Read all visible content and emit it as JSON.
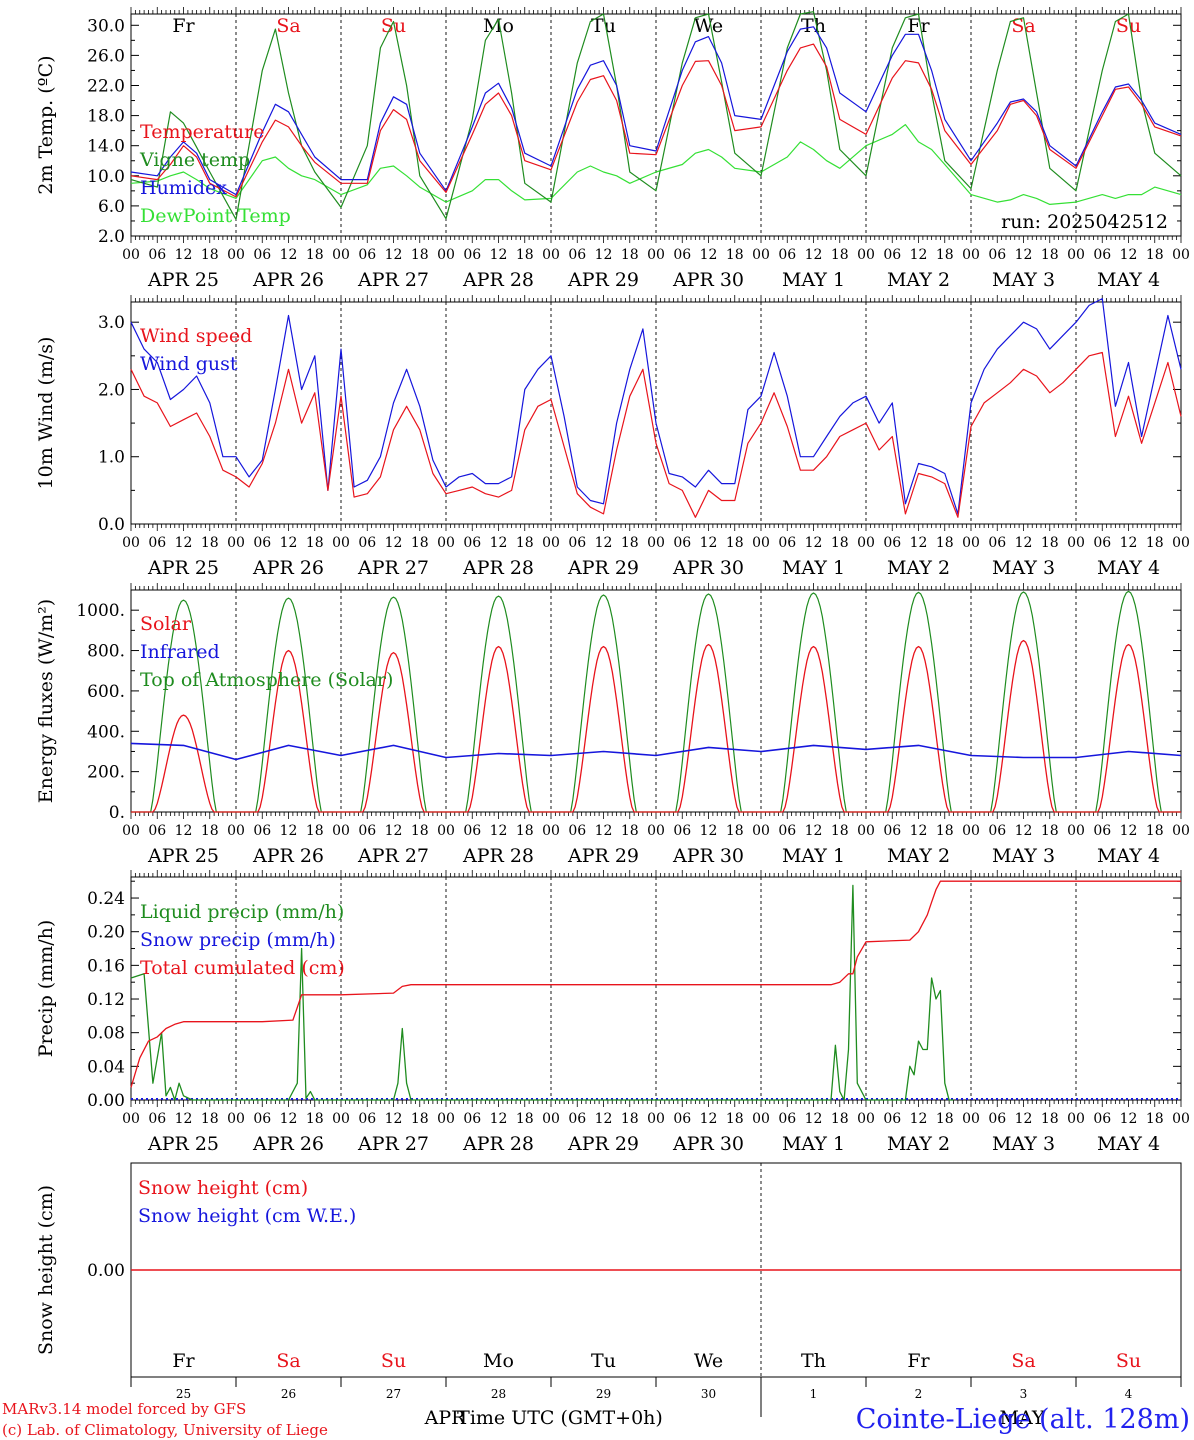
{
  "colors": {
    "red": "#e8141c",
    "blue": "#1616dc",
    "dark_green": "#1f8c1f",
    "light_green": "#35e035",
    "black": "#000000",
    "footer_red": "#e8141c",
    "footer_blue": "#2222ee"
  },
  "chart_data": [
    {
      "type": "line",
      "ylabel": "2m Temp. (ºC)",
      "ylim": [
        2.0,
        31.5
      ],
      "yticks": [
        "2.0",
        "6.0",
        "10.0",
        "14.0",
        "18.0",
        "22.0",
        "26.0",
        "30.0"
      ],
      "run_label": "run: 2025042512",
      "top_day_labels": [
        {
          "text": "Fr",
          "weekend": false
        },
        {
          "text": "Sa",
          "weekend": true
        },
        {
          "text": "Su",
          "weekend": true
        },
        {
          "text": "Mo",
          "weekend": false
        },
        {
          "text": "Tu",
          "weekend": false
        },
        {
          "text": "We",
          "weekend": false
        },
        {
          "text": "Th",
          "weekend": false
        },
        {
          "text": "Fr",
          "weekend": false
        },
        {
          "text": "Sa",
          "weekend": true
        },
        {
          "text": "Su",
          "weekend": true
        }
      ],
      "legend": [
        {
          "text": "Temperature",
          "color": "red"
        },
        {
          "text": "Vigne temp",
          "color": "dark_green"
        },
        {
          "text": "Humidex",
          "color": "blue"
        },
        {
          "text": "DewPoint Temp",
          "color": "light_green"
        }
      ],
      "x_hours": [
        0,
        6,
        9,
        12,
        15,
        18,
        24,
        30,
        33,
        36,
        39,
        42,
        48,
        54,
        57,
        60,
        63,
        66,
        72,
        78,
        81,
        84,
        87,
        90,
        96,
        102,
        105,
        108,
        111,
        114,
        120,
        126,
        129,
        132,
        135,
        138,
        144,
        150,
        153,
        156,
        159,
        162,
        168,
        174,
        177,
        180,
        183,
        186,
        192,
        198,
        201,
        204,
        207,
        210,
        216,
        222,
        225,
        228,
        231,
        234,
        240
      ],
      "series": [
        {
          "name": "Temperature",
          "color": "red",
          "values": [
            10.0,
            9.5,
            11.5,
            14.0,
            12.5,
            9.0,
            7.2,
            14.5,
            17.4,
            16.5,
            14.0,
            11.8,
            9.0,
            9.0,
            16.0,
            18.8,
            17.5,
            12.0,
            7.8,
            15.5,
            19.5,
            21.0,
            18.0,
            12.0,
            10.8,
            19.8,
            22.8,
            23.3,
            20.0,
            13.0,
            12.8,
            22.0,
            25.2,
            25.3,
            22.0,
            16.0,
            16.5,
            24.0,
            27.0,
            27.5,
            24.5,
            17.5,
            15.5,
            23.0,
            25.3,
            25.0,
            21.5,
            16.0,
            11.5,
            16.0,
            19.5,
            20.0,
            18.0,
            13.5,
            11.0,
            18.0,
            21.5,
            21.8,
            19.5,
            16.5,
            15.3
          ]
        },
        {
          "name": "Humidex",
          "color": "blue",
          "values": [
            10.5,
            10.0,
            12.5,
            14.5,
            13.0,
            9.5,
            7.5,
            15.8,
            19.5,
            18.5,
            15.5,
            12.5,
            9.5,
            9.5,
            17.0,
            20.5,
            19.5,
            13.0,
            8.0,
            16.5,
            21.0,
            22.3,
            19.0,
            13.0,
            11.3,
            21.5,
            24.7,
            25.3,
            22.0,
            14.0,
            13.3,
            24.0,
            27.8,
            28.5,
            25.0,
            18.0,
            17.5,
            26.5,
            29.5,
            29.8,
            27.0,
            21.0,
            18.5,
            26.0,
            28.8,
            28.8,
            24.0,
            17.5,
            12.0,
            17.0,
            19.8,
            20.2,
            18.5,
            14.0,
            11.3,
            18.5,
            21.8,
            22.2,
            20.0,
            17.0,
            15.5
          ]
        },
        {
          "name": "Vigne temp",
          "color": "dark_green",
          "values": [
            9.5,
            8.5,
            18.5,
            17.0,
            13.8,
            10.5,
            4.2,
            24.0,
            29.5,
            21.0,
            14.0,
            10.5,
            5.8,
            14.0,
            27.0,
            30.5,
            22.0,
            10.0,
            4.3,
            17.5,
            28.0,
            30.8,
            21.0,
            9.0,
            6.5,
            25.0,
            30.5,
            31.5,
            22.0,
            10.5,
            8.0,
            25.0,
            31.0,
            31.5,
            22.5,
            13.0,
            10.0,
            27.0,
            31.5,
            31.8,
            24.0,
            13.5,
            10.0,
            27.0,
            31.0,
            31.5,
            21.0,
            12.0,
            8.3,
            24.0,
            30.5,
            31.0,
            21.0,
            11.0,
            8.0,
            24.0,
            30.5,
            31.5,
            20.0,
            13.0,
            10.0
          ]
        },
        {
          "name": "DewPoint Temp",
          "color": "light_green",
          "values": [
            9.0,
            9.3,
            10.0,
            10.5,
            9.5,
            8.3,
            7.0,
            12.0,
            12.5,
            11.0,
            10.0,
            9.5,
            7.5,
            8.8,
            11.0,
            11.3,
            10.0,
            8.5,
            6.5,
            8.0,
            9.5,
            9.5,
            8.0,
            6.8,
            7.0,
            10.5,
            11.3,
            10.5,
            10.0,
            9.0,
            10.5,
            11.5,
            13.0,
            13.5,
            12.5,
            11.0,
            10.5,
            12.5,
            14.5,
            13.5,
            12.0,
            11.0,
            14.0,
            15.5,
            16.8,
            14.5,
            13.5,
            11.5,
            7.5,
            6.5,
            6.8,
            7.5,
            7.0,
            6.2,
            6.5,
            7.5,
            7.0,
            7.5,
            7.5,
            8.5,
            7.5
          ]
        }
      ]
    },
    {
      "type": "line",
      "ylabel": "10m Wind (m/s)",
      "ylim": [
        0.0,
        3.3
      ],
      "yticks": [
        "0.0",
        "1.0",
        "2.0",
        "3.0"
      ],
      "legend": [
        {
          "text": "Wind speed",
          "color": "red"
        },
        {
          "text": "Wind gust",
          "color": "blue"
        }
      ],
      "x_hours": [
        0,
        3,
        6,
        9,
        12,
        15,
        18,
        21,
        24,
        27,
        30,
        33,
        36,
        39,
        42,
        45,
        48,
        51,
        54,
        57,
        60,
        63,
        66,
        69,
        72,
        75,
        78,
        81,
        84,
        87,
        90,
        93,
        96,
        99,
        102,
        105,
        108,
        111,
        114,
        117,
        120,
        123,
        126,
        129,
        132,
        135,
        138,
        141,
        144,
        147,
        150,
        153,
        156,
        159,
        162,
        165,
        168,
        171,
        174,
        177,
        180,
        183,
        186,
        189,
        192,
        195,
        198,
        201,
        204,
        207,
        210,
        213,
        216,
        219,
        222,
        225,
        228,
        231,
        234,
        237,
        240
      ],
      "series": [
        {
          "name": "Wind speed",
          "color": "red",
          "values": [
            2.3,
            1.9,
            1.8,
            1.45,
            1.55,
            1.65,
            1.3,
            0.8,
            0.7,
            0.55,
            0.9,
            1.5,
            2.3,
            1.5,
            1.95,
            0.5,
            1.9,
            0.4,
            0.45,
            0.7,
            1.4,
            1.75,
            1.4,
            0.75,
            0.45,
            0.5,
            0.55,
            0.45,
            0.4,
            0.5,
            1.4,
            1.75,
            1.85,
            1.15,
            0.45,
            0.25,
            0.15,
            1.1,
            1.9,
            2.3,
            1.2,
            0.6,
            0.5,
            0.1,
            0.5,
            0.35,
            0.35,
            1.2,
            1.5,
            1.95,
            1.45,
            0.8,
            0.8,
            1.0,
            1.3,
            1.4,
            1.5,
            1.1,
            1.3,
            0.15,
            0.75,
            0.7,
            0.6,
            0.1,
            1.45,
            1.8,
            1.95,
            2.1,
            2.3,
            2.2,
            1.95,
            2.1,
            2.3,
            2.5,
            2.55,
            1.3,
            1.9,
            1.2,
            1.8,
            2.4,
            1.6
          ]
        },
        {
          "name": "Wind gust",
          "color": "blue",
          "values": [
            3.0,
            2.6,
            2.4,
            1.85,
            2.0,
            2.2,
            1.8,
            1.0,
            1.0,
            0.7,
            0.95,
            2.0,
            3.1,
            2.0,
            2.5,
            0.5,
            2.6,
            0.55,
            0.65,
            1.0,
            1.8,
            2.3,
            1.75,
            0.95,
            0.55,
            0.7,
            0.75,
            0.6,
            0.6,
            0.7,
            2.0,
            2.3,
            2.5,
            1.6,
            0.55,
            0.35,
            0.3,
            1.5,
            2.3,
            2.9,
            1.5,
            0.75,
            0.7,
            0.55,
            0.8,
            0.6,
            0.6,
            1.7,
            1.9,
            2.55,
            1.9,
            1.0,
            1.0,
            1.3,
            1.6,
            1.8,
            1.9,
            1.5,
            1.8,
            0.3,
            0.9,
            0.85,
            0.75,
            0.15,
            1.8,
            2.3,
            2.6,
            2.8,
            3.0,
            2.9,
            2.6,
            2.8,
            3.0,
            3.25,
            3.35,
            1.75,
            2.4,
            1.3,
            2.2,
            3.1,
            2.3
          ]
        }
      ]
    },
    {
      "type": "line",
      "ylabel": "Energy fluxes (W/m²)",
      "ylim": [
        0,
        1100
      ],
      "yticks": [
        "0.",
        "200.",
        "400.",
        "600.",
        "800.",
        "1000."
      ],
      "legend": [
        {
          "text": "Solar",
          "color": "red"
        },
        {
          "text": "Infrared",
          "color": "blue"
        },
        {
          "text": "Top of Atmosphere (Solar)",
          "color": "dark_green"
        }
      ],
      "toa_peaks": [
        1050,
        1060,
        1065,
        1070,
        1075,
        1080,
        1085,
        1088,
        1090,
        1093
      ],
      "solar_peaks": [
        480,
        800,
        790,
        820,
        820,
        830,
        820,
        820,
        850,
        830
      ],
      "infrared": {
        "x_hours": [
          0,
          12,
          24,
          36,
          48,
          60,
          72,
          84,
          96,
          108,
          120,
          132,
          144,
          156,
          168,
          180,
          192,
          204,
          216,
          228,
          240
        ],
        "values": [
          340,
          330,
          260,
          330,
          280,
          330,
          270,
          290,
          280,
          300,
          280,
          320,
          300,
          330,
          310,
          330,
          280,
          270,
          270,
          300,
          280
        ]
      }
    },
    {
      "type": "line",
      "ylabel": "Precip (mm/h)",
      "ylim": [
        0.0,
        0.265
      ],
      "yticks": [
        "0.00",
        "0.04",
        "0.08",
        "0.12",
        "0.16",
        "0.20",
        "0.24"
      ],
      "legend": [
        {
          "text": "Liquid precip (mm/h)",
          "color": "dark_green"
        },
        {
          "text": "Snow precip (mm/h)",
          "color": "blue"
        },
        {
          "text": "Total cumulated (cm)",
          "color": "red"
        }
      ],
      "series": [
        {
          "name": "Liquid precip (mm/h)",
          "color": "dark_green",
          "x_hours": [
            0,
            3,
            5,
            7,
            8,
            9,
            10,
            11,
            12,
            14,
            16,
            36,
            38,
            39,
            40,
            41,
            42,
            60,
            61,
            62,
            63,
            64,
            160,
            161,
            162,
            163,
            164,
            165,
            166,
            168,
            177,
            178,
            179,
            180,
            181,
            182,
            183,
            184,
            185,
            186,
            187,
            188
          ],
          "values": [
            0.145,
            0.15,
            0.02,
            0.08,
            0.005,
            0.015,
            0.0,
            0.02,
            0.005,
            0.0,
            0.0,
            0.0,
            0.02,
            0.18,
            0.002,
            0.01,
            0.0,
            0.0,
            0.02,
            0.085,
            0.02,
            0.0,
            0.0,
            0.065,
            0.01,
            0.0,
            0.06,
            0.255,
            0.02,
            0.0,
            0.0,
            0.04,
            0.03,
            0.07,
            0.06,
            0.06,
            0.145,
            0.12,
            0.13,
            0.02,
            0.0,
            0.0
          ]
        },
        {
          "name": "Total cumulated (cm)",
          "color": "red",
          "x_hours": [
            0,
            2,
            4,
            6,
            8,
            10,
            12,
            30,
            37,
            38,
            39,
            40,
            48,
            60,
            62,
            64,
            160,
            162,
            164,
            165,
            166,
            168,
            178,
            180,
            182,
            183,
            184,
            185,
            240
          ],
          "values": [
            0.015,
            0.05,
            0.07,
            0.075,
            0.085,
            0.09,
            0.093,
            0.093,
            0.095,
            0.11,
            0.125,
            0.125,
            0.125,
            0.127,
            0.135,
            0.137,
            0.137,
            0.14,
            0.15,
            0.15,
            0.17,
            0.188,
            0.19,
            0.2,
            0.22,
            0.235,
            0.25,
            0.26,
            0.26
          ]
        }
      ]
    },
    {
      "type": "line",
      "ylabel": "Snow height (cm)",
      "ylim": [
        -1,
        1
      ],
      "yticks": [
        "0.00"
      ],
      "legend": [
        {
          "text": "Snow height (cm)",
          "color": "red"
        },
        {
          "text": "Snow height (cm W.E.)",
          "color": "blue"
        }
      ],
      "series": [
        {
          "name": "Snow height (cm)",
          "color": "red",
          "x_hours": [
            0,
            240
          ],
          "values": [
            0.0,
            0.0
          ]
        }
      ],
      "bottom_day_labels": [
        {
          "text": "Fr",
          "weekend": false
        },
        {
          "text": "Sa",
          "weekend": true
        },
        {
          "text": "Su",
          "weekend": true
        },
        {
          "text": "Mo",
          "weekend": false
        },
        {
          "text": "Tu",
          "weekend": false
        },
        {
          "text": "We",
          "weekend": false
        },
        {
          "text": "Th",
          "weekend": false
        },
        {
          "text": "Fr",
          "weekend": false
        },
        {
          "text": "Sa",
          "weekend": true
        },
        {
          "text": "Su",
          "weekend": true
        }
      ],
      "bottom_day_numbers": [
        "25",
        "26",
        "27",
        "28",
        "29",
        "30",
        "1",
        "2",
        "3",
        "4"
      ],
      "month_labels": [
        "APR",
        "MAY"
      ],
      "xlabel": "Time UTC (GMT+0h)"
    }
  ],
  "x_axis": {
    "hour_labels": [
      "00",
      "06",
      "12",
      "18"
    ],
    "final_hour_label": "00",
    "date_labels": [
      "APR 25",
      "APR 26",
      "APR 27",
      "APR 28",
      "APR 29",
      "APR 30",
      "MAY  1",
      "MAY  2",
      "MAY  3",
      "MAY  4"
    ]
  },
  "footer": {
    "credit_line1": "MARv3.14 model forced by GFS",
    "credit_line2": "(c) Lab. of Climatology, University of Liege",
    "station": "Cointe-Liege (alt. 128m)"
  }
}
